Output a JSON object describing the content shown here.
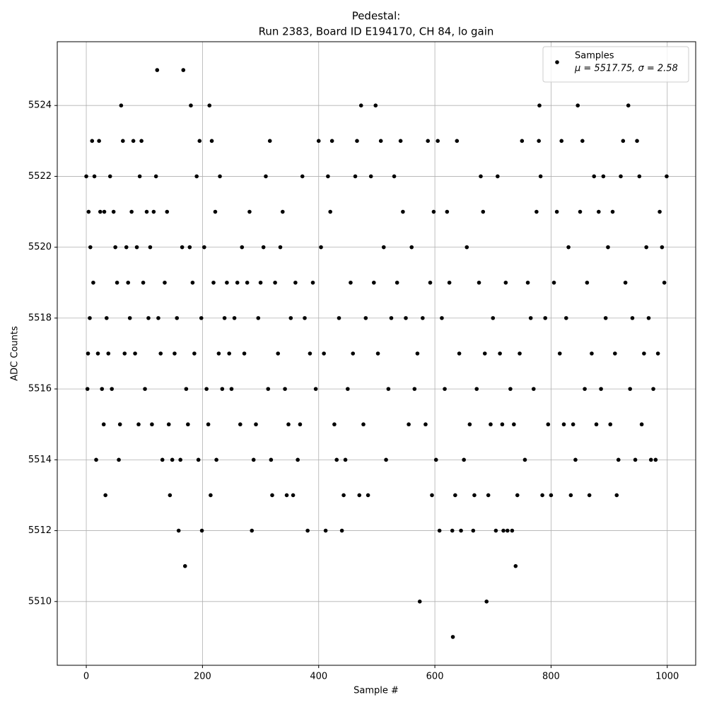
{
  "chart_data": {
    "type": "scatter",
    "title": [
      "Pedestal:",
      "Run 2383, Board ID E194170, CH 84, lo gain"
    ],
    "xlabel": "Sample #",
    "ylabel": "ADC Counts",
    "xlim": [
      -49.95,
      1048.95
    ],
    "ylim": [
      5508.2,
      5525.8
    ],
    "xticks": [
      0,
      200,
      400,
      600,
      800,
      1000
    ],
    "yticks": [
      5510,
      5512,
      5514,
      5516,
      5518,
      5520,
      5522,
      5524
    ],
    "grid": true,
    "legend": "upper right",
    "annotation": "μ = 5517.75, σ = 2.58",
    "series": [
      {
        "name": "Samples",
        "color": "#000000",
        "x": [
          0,
          2,
          3,
          4,
          6,
          7,
          10,
          12,
          14,
          17,
          20,
          22,
          24,
          27,
          30,
          31,
          33,
          35,
          38,
          41,
          44,
          47,
          50,
          53,
          56,
          58,
          60,
          63,
          66,
          69,
          72,
          75,
          78,
          81,
          84,
          87,
          90,
          92,
          95,
          98,
          101,
          104,
          107,
          110,
          113,
          116,
          120,
          122,
          124,
          128,
          131,
          135,
          139,
          142,
          144,
          148,
          152,
          156,
          159,
          162,
          165,
          167,
          170,
          172,
          175,
          178,
          180,
          183,
          186,
          190,
          193,
          195,
          198,
          199,
          203,
          207,
          210,
          212,
          214,
          216,
          219,
          222,
          224,
          228,
          230,
          234,
          238,
          242,
          246,
          250,
          255,
          260,
          265,
          268,
          272,
          277,
          281,
          285,
          288,
          292,
          296,
          300,
          305,
          309,
          313,
          316,
          318,
          320,
          325,
          330,
          334,
          338,
          342,
          345,
          348,
          352,
          356,
          360,
          364,
          368,
          372,
          376,
          381,
          385,
          390,
          395,
          400,
          404,
          409,
          412,
          416,
          420,
          423,
          427,
          431,
          435,
          440,
          443,
          446,
          450,
          455,
          459,
          463,
          466,
          470,
          473,
          477,
          481,
          485,
          490,
          495,
          498,
          502,
          507,
          512,
          516,
          520,
          525,
          530,
          535,
          541,
          545,
          550,
          555,
          560,
          565,
          570,
          574,
          579,
          584,
          588,
          592,
          595,
          598,
          602,
          605,
          608,
          612,
          617,
          621,
          625,
          630,
          631,
          635,
          638,
          642,
          645,
          650,
          655,
          660,
          666,
          668,
          672,
          676,
          679,
          683,
          686,
          689,
          692,
          696,
          700,
          705,
          708,
          712,
          716,
          718,
          722,
          725,
          730,
          733,
          736,
          739,
          742,
          746,
          750,
          755,
          760,
          765,
          770,
          775,
          779,
          780,
          782,
          785,
          790,
          795,
          800,
          805,
          810,
          815,
          818,
          822,
          826,
          830,
          834,
          838,
          842,
          846,
          850,
          854,
          858,
          862,
          866,
          870,
          874,
          878,
          882,
          886,
          890,
          894,
          898,
          902,
          906,
          910,
          913,
          916,
          920,
          924,
          928,
          933,
          936,
          940,
          945,
          948,
          952,
          956,
          960,
          964,
          968,
          972,
          976,
          980,
          984,
          987,
          991,
          995,
          999
        ],
        "values": [
          5522,
          5516,
          5517,
          5521,
          5518,
          5520,
          5523,
          5519,
          5522,
          5514,
          5517,
          5523,
          5521,
          5516,
          5515,
          5521,
          5513,
          5518,
          5517,
          5522,
          5516,
          5521,
          5520,
          5519,
          5514,
          5515,
          5524,
          5523,
          5517,
          5520,
          5519,
          5518,
          5521,
          5523,
          5517,
          5520,
          5515,
          5522,
          5523,
          5519,
          5516,
          5521,
          5518,
          5520,
          5515,
          5521,
          5522,
          5525,
          5518,
          5517,
          5514,
          5519,
          5521,
          5515,
          5513,
          5514,
          5517,
          5518,
          5512,
          5514,
          5520,
          5525,
          5511,
          5516,
          5515,
          5520,
          5524,
          5519,
          5517,
          5522,
          5514,
          5523,
          5518,
          5512,
          5520,
          5516,
          5515,
          5524,
          5513,
          5523,
          5519,
          5521,
          5514,
          5517,
          5522,
          5516,
          5518,
          5519,
          5517,
          5516,
          5518,
          5519,
          5515,
          5520,
          5517,
          5519,
          5521,
          5512,
          5514,
          5515,
          5518,
          5519,
          5520,
          5522,
          5516,
          5523,
          5514,
          5513,
          5519,
          5517,
          5520,
          5521,
          5516,
          5513,
          5515,
          5518,
          5513,
          5519,
          5514,
          5515,
          5522,
          5518,
          5512,
          5517,
          5519,
          5516,
          5523,
          5520,
          5517,
          5512,
          5522,
          5521,
          5523,
          5515,
          5514,
          5518,
          5512,
          5513,
          5514,
          5516,
          5519,
          5517,
          5522,
          5523,
          5513,
          5524,
          5515,
          5518,
          5513,
          5522,
          5519,
          5524,
          5517,
          5523,
          5520,
          5514,
          5516,
          5518,
          5522,
          5519,
          5523,
          5521,
          5518,
          5515,
          5520,
          5516,
          5517,
          5510,
          5518,
          5515,
          5523,
          5519,
          5513,
          5521,
          5514,
          5523,
          5512,
          5518,
          5516,
          5521,
          5519,
          5512,
          5509,
          5513,
          5523,
          5517,
          5512,
          5514,
          5520,
          5515,
          5512,
          5513,
          5516,
          5519,
          5522,
          5521,
          5517,
          5510,
          5513,
          5515,
          5518,
          5512,
          5522,
          5517,
          5515,
          5512,
          5519,
          5512,
          5516,
          5512,
          5515,
          5511,
          5513,
          5517,
          5523,
          5514,
          5519,
          5518,
          5516,
          5521,
          5523,
          5524,
          5522,
          5513,
          5518,
          5515,
          5513,
          5519,
          5521,
          5517,
          5523,
          5515,
          5518,
          5520,
          5513,
          5515,
          5514,
          5524,
          5521,
          5523,
          5516,
          5519,
          5513,
          5517,
          5522,
          5515,
          5521,
          5516,
          5522,
          5518,
          5520,
          5515,
          5521,
          5517,
          5513,
          5514,
          5522,
          5523,
          5519,
          5524,
          5516,
          5518,
          5514,
          5523,
          5522,
          5515,
          5517,
          5520,
          5518,
          5514,
          5516,
          5514,
          5517,
          5521,
          5520,
          5519,
          5522
        ]
      }
    ]
  }
}
